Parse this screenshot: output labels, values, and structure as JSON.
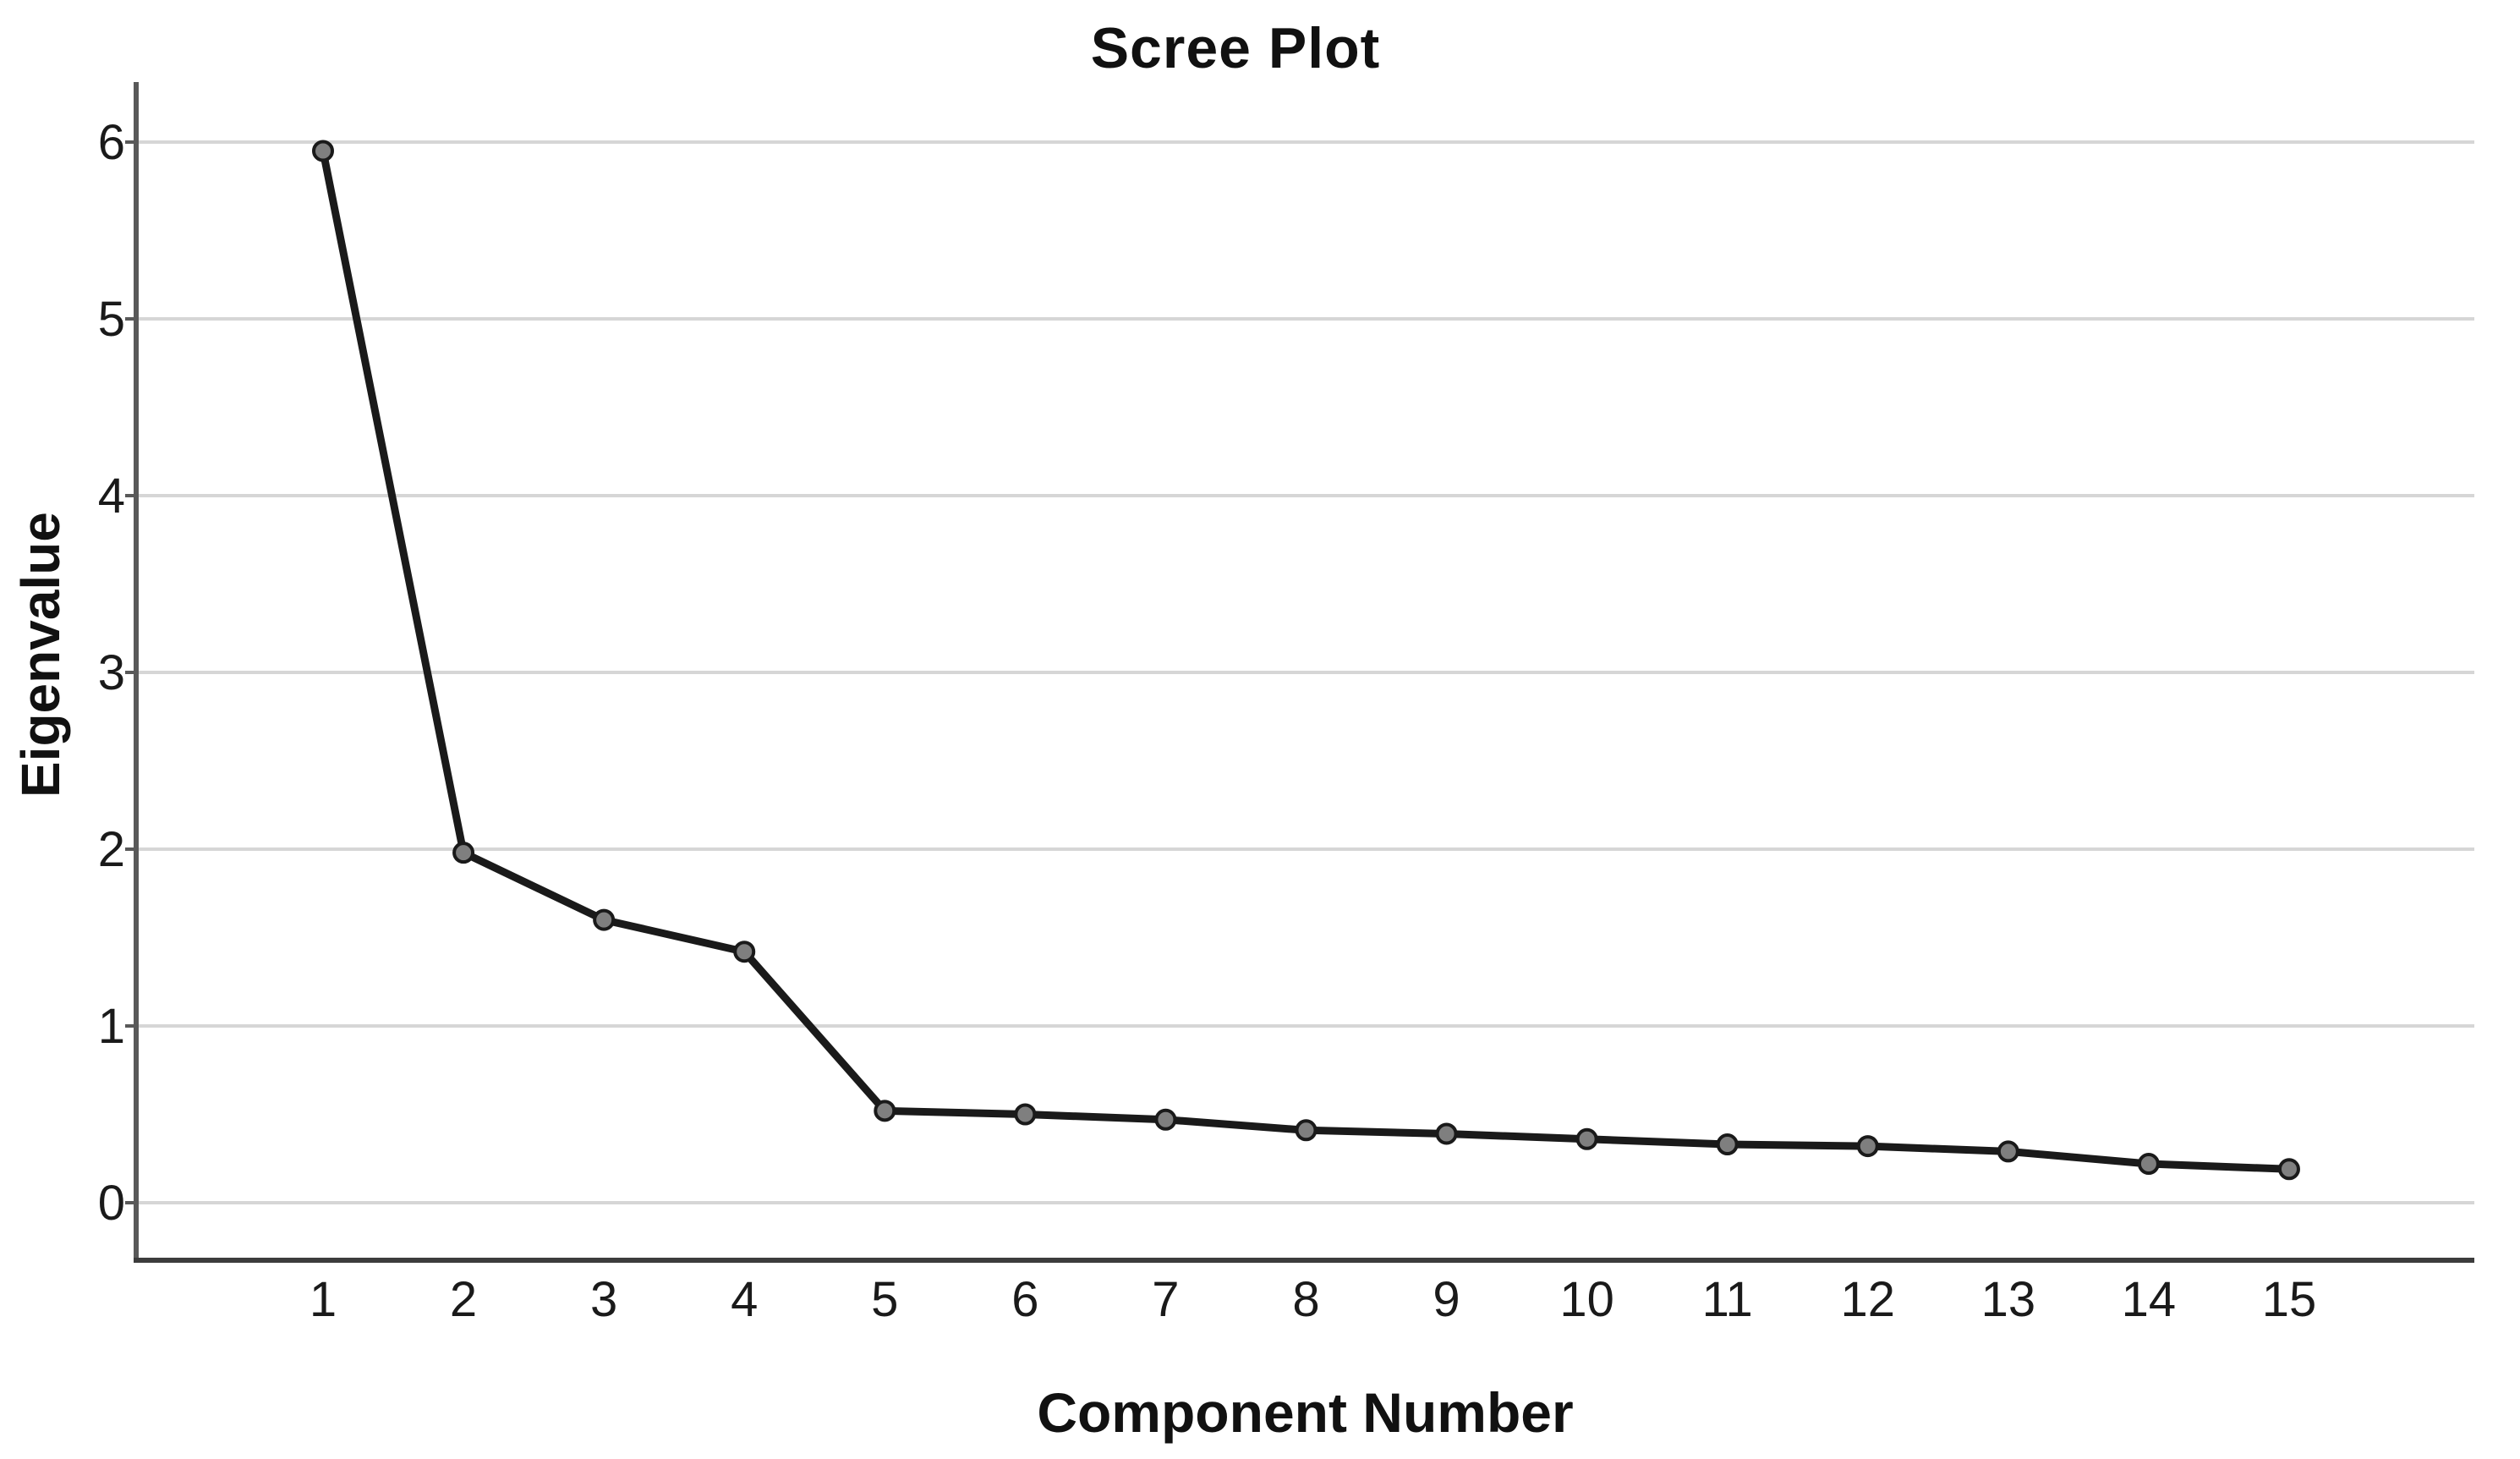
{
  "chart_data": {
    "type": "line",
    "title": "Scree Plot",
    "xlabel": "Component Number",
    "ylabel": "Eigenvalue",
    "categories": [
      "1",
      "2",
      "3",
      "4",
      "5",
      "6",
      "7",
      "8",
      "9",
      "10",
      "11",
      "12",
      "13",
      "14",
      "15"
    ],
    "series": [
      {
        "name": "Eigenvalues",
        "values": [
          5.95,
          1.98,
          1.6,
          1.42,
          0.52,
          0.5,
          0.47,
          0.41,
          0.39,
          0.36,
          0.33,
          0.32,
          0.29,
          0.22,
          0.19
        ]
      }
    ],
    "yticks": [
      0,
      1,
      2,
      3,
      4,
      5,
      6
    ],
    "ylim": [
      0,
      6
    ],
    "xlim": [
      1,
      15
    ],
    "grid": "horizontal",
    "legend": "none",
    "colors": {
      "line": "#1a1a1a",
      "marker_fill": "#7f7f7f",
      "marker_stroke": "#1a1a1a",
      "gridline": "#d6d6d6",
      "y_axis": "#595959",
      "x_axis": "#3c3c3c",
      "tick_label": "#1a1a1a",
      "background": "#ffffff"
    }
  }
}
